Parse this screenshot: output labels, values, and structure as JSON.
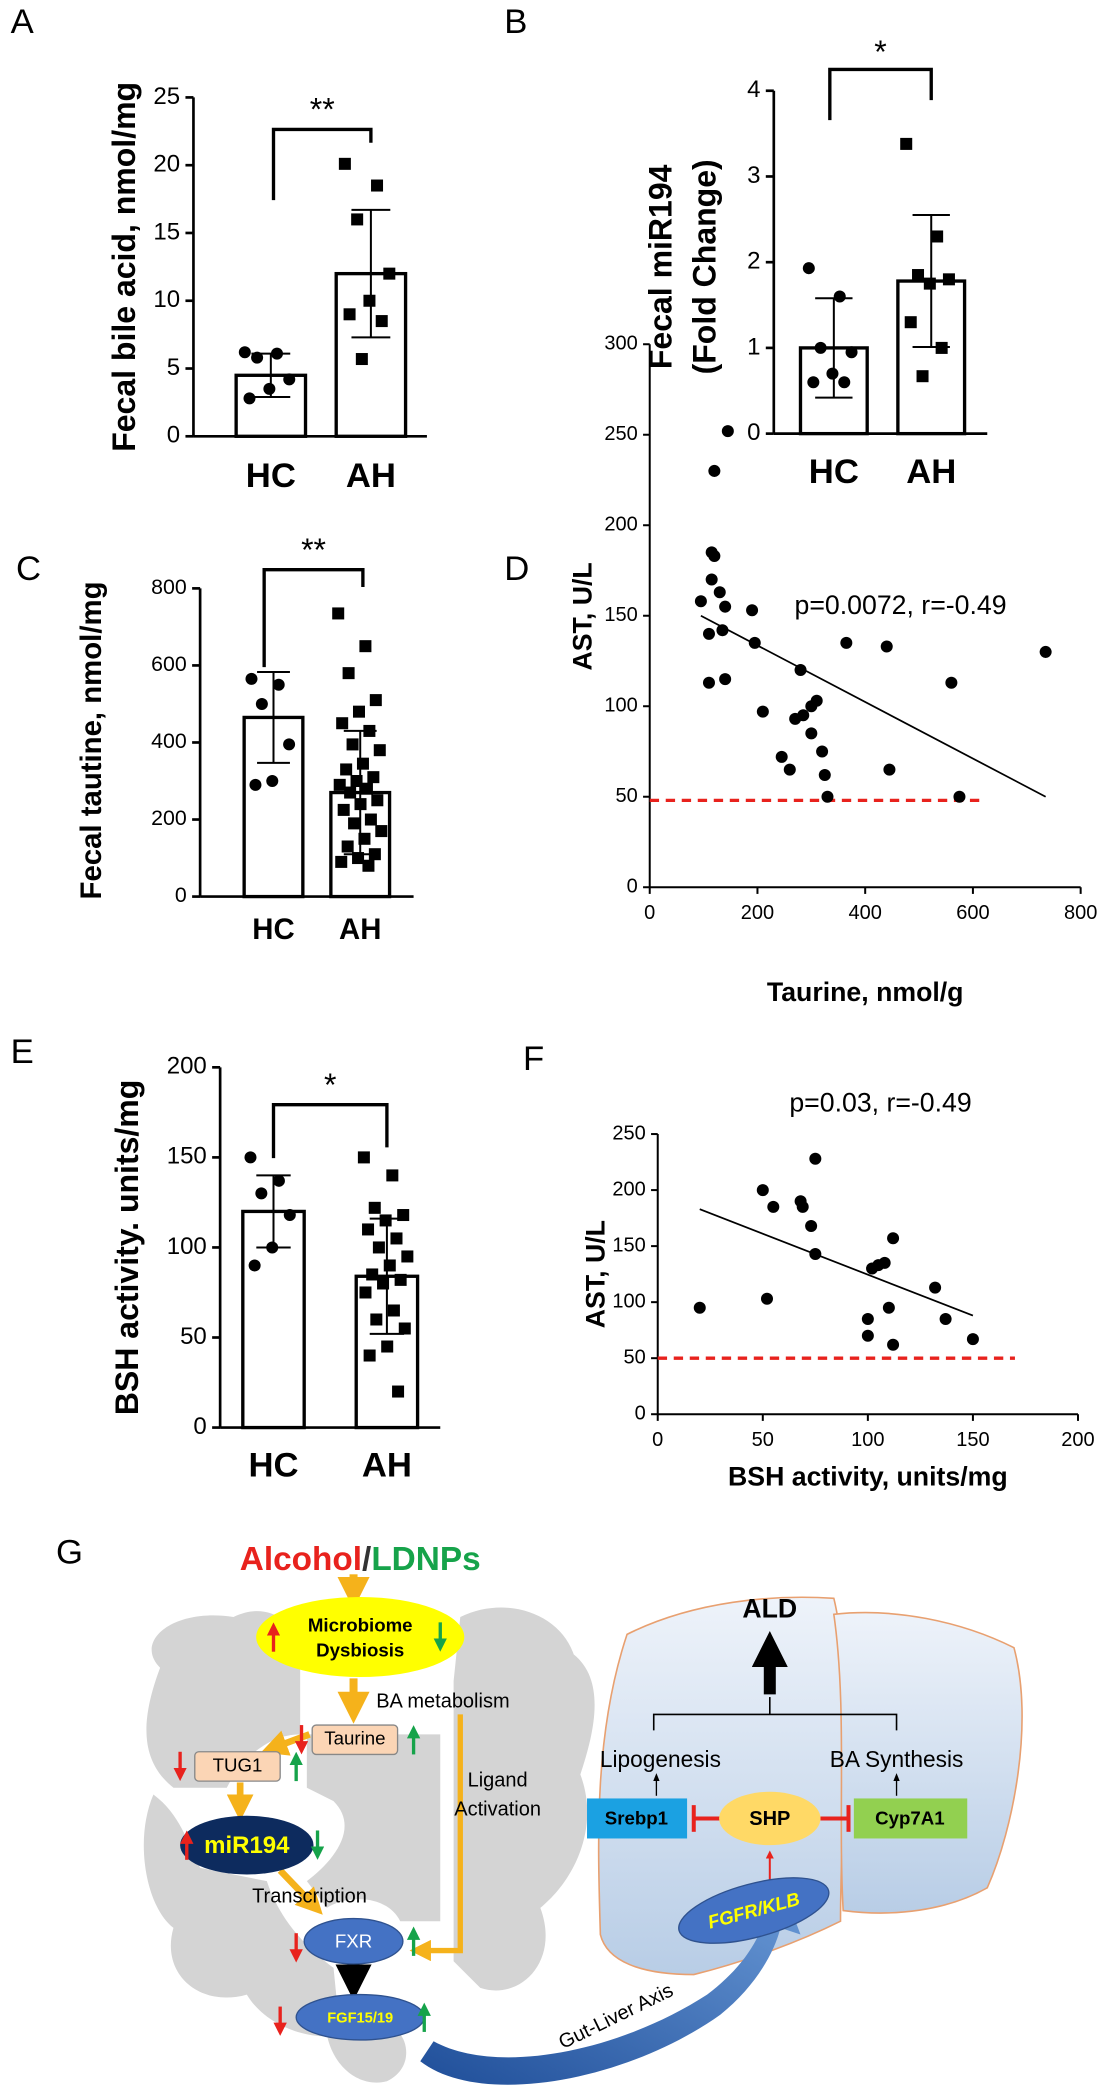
{
  "chart_data": [
    {
      "panel": "A",
      "type": "bar",
      "ylabel": "Fecal bile acid, nmol/mg",
      "categories": [
        "HC",
        "AH"
      ],
      "values": [
        4.5,
        12.0
      ],
      "errors": [
        1.6,
        4.7
      ],
      "points": [
        [
          6.2,
          6.1,
          5.8,
          4.2,
          3.5,
          2.8
        ],
        [
          20.1,
          18.5,
          16.0,
          12.0,
          10.0,
          9.0,
          8.5,
          5.7
        ]
      ],
      "markers": [
        "circle",
        "square"
      ],
      "color": "#000000",
      "ylim": [
        0,
        25
      ],
      "yticks": [
        0,
        5,
        10,
        15,
        20,
        25
      ],
      "annotation": "**"
    },
    {
      "panel": "B",
      "type": "bar",
      "ylabel": [
        "Fecal miR194",
        "(Fold Change)"
      ],
      "categories": [
        "HC",
        "AH"
      ],
      "values": [
        1.0,
        1.78
      ],
      "errors": [
        0.58,
        0.77
      ],
      "points": [
        [
          1.93,
          1.6,
          1.0,
          0.95,
          0.7,
          0.6,
          0.6
        ],
        [
          3.38,
          2.3,
          1.85,
          1.8,
          1.75,
          1.3,
          1.0,
          0.67
        ]
      ],
      "markers": [
        "circle",
        "square"
      ],
      "color": "#000000",
      "ylim": [
        0,
        4
      ],
      "yticks": [
        0,
        1,
        2,
        3,
        4
      ],
      "annotation": "*"
    },
    {
      "panel": "C",
      "type": "bar",
      "ylabel": "Fecal tautine, nmol/mg",
      "categories": [
        "HC",
        "AH"
      ],
      "values": [
        465,
        270
      ],
      "errors": [
        118,
        160
      ],
      "points": [
        [
          565,
          550,
          500,
          395,
          300,
          290
        ],
        [
          735,
          650,
          580,
          510,
          480,
          450,
          430,
          395,
          380,
          345,
          330,
          310,
          300,
          290,
          280,
          270,
          250,
          240,
          225,
          200,
          190,
          170,
          150,
          130,
          110,
          100,
          90,
          80
        ]
      ],
      "markers": [
        "circle",
        "square"
      ],
      "color": "#000000",
      "ylim": [
        0,
        800
      ],
      "yticks": [
        0,
        200,
        400,
        600,
        800
      ],
      "annotation": "**"
    },
    {
      "panel": "D",
      "type": "scatter",
      "xlabel": "Taurine, nmol/g",
      "ylabel": "AST, U/L",
      "annotation": "p=0.0072, r=-0.49",
      "color": "#000000",
      "x": [
        95,
        110,
        110,
        115,
        115,
        120,
        120,
        130,
        135,
        140,
        140,
        145,
        190,
        195,
        210,
        245,
        260,
        270,
        280,
        285,
        300,
        300,
        310,
        320,
        325,
        330,
        365,
        440,
        445,
        560,
        575,
        735
      ],
      "y": [
        158,
        140,
        113,
        185,
        170,
        230,
        183,
        163,
        142,
        115,
        155,
        252,
        153,
        135,
        97,
        72,
        65,
        93,
        120,
        95,
        100,
        85,
        103,
        75,
        62,
        50,
        135,
        133,
        65,
        113,
        50,
        130
      ],
      "trendline": {
        "x": [
          95,
          735
        ],
        "y": [
          150,
          50
        ]
      },
      "reference_line": {
        "y": 48,
        "x": [
          0,
          614
        ],
        "color": "#e8221d"
      },
      "xlim": [
        0,
        800
      ],
      "xticks": [
        0,
        200,
        400,
        600,
        800
      ],
      "ylim": [
        0,
        300
      ],
      "yticks": [
        0,
        50,
        100,
        150,
        200,
        250,
        300
      ]
    },
    {
      "panel": "E",
      "type": "bar",
      "ylabel": "BSH activity. units/mg",
      "categories": [
        "HC",
        "AH"
      ],
      "values": [
        120,
        84
      ],
      "errors": [
        20,
        32
      ],
      "points": [
        [
          150,
          137,
          130,
          118,
          100,
          90
        ],
        [
          150,
          140,
          122,
          118,
          115,
          110,
          105,
          100,
          95,
          90,
          85,
          82,
          80,
          75,
          65,
          60,
          55,
          45,
          40,
          20
        ]
      ],
      "markers": [
        "circle",
        "square"
      ],
      "color": "#000000",
      "ylim": [
        0,
        200
      ],
      "yticks": [
        0,
        50,
        100,
        150,
        200
      ],
      "annotation": "*"
    },
    {
      "panel": "F",
      "type": "scatter",
      "xlabel": "BSH activity, units/mg",
      "ylabel": "AST, U/L",
      "annotation": "p=0.03, r=-0.49",
      "color": "#000000",
      "x": [
        20,
        50,
        52,
        55,
        68,
        69,
        73,
        75,
        75,
        100,
        100,
        102,
        105,
        108,
        110,
        112,
        112,
        132,
        137,
        150
      ],
      "y": [
        95,
        200,
        103,
        185,
        190,
        185,
        168,
        228,
        143,
        85,
        70,
        130,
        133,
        135,
        95,
        62,
        157,
        113,
        85,
        67
      ],
      "trendline": {
        "x": [
          20,
          150
        ],
        "y": [
          183,
          88
        ]
      },
      "reference_line": {
        "y": 50,
        "x": [
          0,
          170
        ],
        "color": "#e8221d"
      },
      "xlim": [
        0,
        200
      ],
      "xticks": [
        0,
        50,
        100,
        150,
        200
      ],
      "ylim": [
        0,
        250
      ],
      "yticks": [
        0,
        50,
        100,
        150,
        200,
        250
      ]
    }
  ],
  "diagram": {
    "panel": "G",
    "alcohol": "Alcohol",
    "slash": "/",
    "ldnps": "LDNPs",
    "microbiome": [
      "Microbiome",
      "Dysbiosis"
    ],
    "ba_metabolism": "BA metabolism",
    "taurine": "Taurine",
    "tug1": "TUG1",
    "ligand_activation": [
      "Ligand",
      "Activation"
    ],
    "mir194": "miR194",
    "transcription": "Transcription",
    "fxr": "FXR",
    "fgf": "FGF15/19",
    "gut_liver_axis": "Gut-Liver Axis",
    "ald": "ALD",
    "lipogenesis": "Lipogenesis",
    "ba_synthesis": "BA Synthesis",
    "srebp1": "Srebp1",
    "shp": "SHP",
    "cyp7a1": "Cyp7A1",
    "fgfr": "FGFR/KLB"
  }
}
